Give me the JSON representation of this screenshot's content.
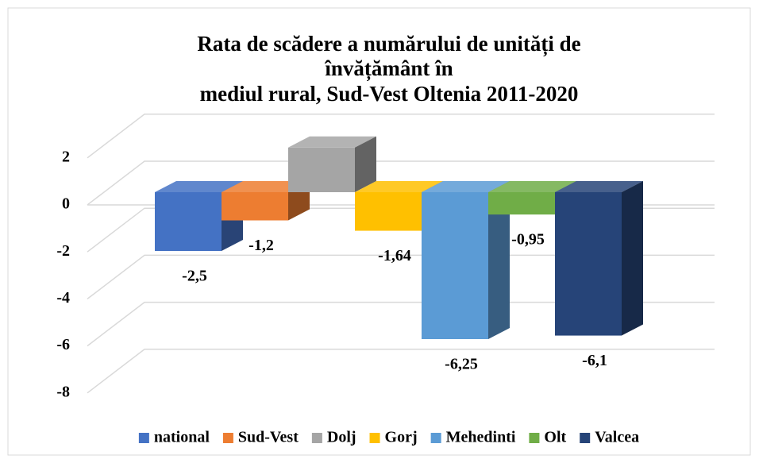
{
  "chart_data": {
    "type": "bar3d",
    "title": [
      "Rata de scădere a numărului de unități de",
      "învățământ în",
      "mediul rural, Sud-Vest Oltenia 2011-2020"
    ],
    "series": [
      {
        "name": "national",
        "color": "#4472c4",
        "values": [
          -2.5
        ],
        "value_labels": [
          "-2,5"
        ]
      },
      {
        "name": "Sud-Vest",
        "color": "#ed7d31",
        "values": [
          -1.2
        ],
        "value_labels": [
          "-1,2"
        ]
      },
      {
        "name": "Dolj",
        "color": "#a5a5a5",
        "values": [
          1.9
        ]
      },
      {
        "name": "Gorj",
        "color": "#ffc000",
        "values": [
          -1.64
        ],
        "value_labels": [
          "-1,64"
        ]
      },
      {
        "name": "Mehedinti",
        "color": "#5b9bd5",
        "values": [
          -6.25
        ],
        "value_labels": [
          "-6,25"
        ]
      },
      {
        "name": "Olt",
        "color": "#70ad47",
        "values": [
          -0.95
        ],
        "value_labels": [
          "-0,95"
        ]
      },
      {
        "name": "Valcea",
        "color": "#264478",
        "values": [
          -6.1
        ],
        "value_labels": [
          "-6,1"
        ]
      }
    ],
    "ylim": [
      -8,
      2
    ],
    "yticks": [
      2,
      0,
      -2,
      -4,
      -6,
      -8
    ],
    "grid": true,
    "legend": "bottom"
  }
}
